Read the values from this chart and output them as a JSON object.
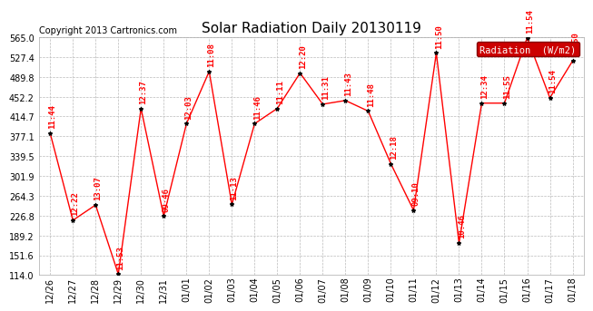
{
  "title": "Solar Radiation Daily 20130119",
  "copyright": "Copyright 2013 Cartronics.com",
  "legend_label": "Radiation  (W/m2)",
  "ylim": [
    114.0,
    565.0
  ],
  "yticks": [
    114.0,
    151.6,
    189.2,
    226.8,
    264.3,
    301.9,
    339.5,
    377.1,
    414.7,
    452.2,
    489.8,
    527.4,
    565.0
  ],
  "dates": [
    "12/26",
    "12/27",
    "12/28",
    "12/29",
    "12/30",
    "12/31",
    "01/01",
    "01/02",
    "01/03",
    "01/04",
    "01/05",
    "01/06",
    "01/07",
    "01/08",
    "01/09",
    "01/10",
    "01/11",
    "01/12",
    "01/13",
    "01/14",
    "01/15",
    "01/16",
    "01/17",
    "01/18"
  ],
  "values": [
    383.0,
    218.0,
    247.0,
    116.0,
    430.0,
    226.0,
    401.0,
    500.0,
    248.0,
    401.0,
    430.0,
    497.0,
    438.0,
    445.0,
    425.0,
    325.0,
    237.0,
    535.0,
    175.0,
    440.0,
    440.0,
    564.0,
    450.0,
    520.0
  ],
  "time_labels": [
    "11:44",
    "12:22",
    "13:07",
    "11:53",
    "12:37",
    "09:46",
    "12:03",
    "11:08",
    "11:13",
    "11:46",
    "11:11",
    "12:20",
    "11:31",
    "11:43",
    "11:48",
    "12:18",
    "09:10",
    "11:50",
    "10:46",
    "12:34",
    "11:55",
    "11:54",
    "11:54",
    "13:50"
  ],
  "line_color": "#ff0000",
  "dot_color": "#000000",
  "bg_color": "#ffffff",
  "grid_color": "#bbbbbb",
  "title_fontsize": 11,
  "copyright_fontsize": 7,
  "label_fontsize": 6.5,
  "legend_bg": "#cc0000",
  "legend_text_color": "#ffffff",
  "tick_fontsize": 7
}
